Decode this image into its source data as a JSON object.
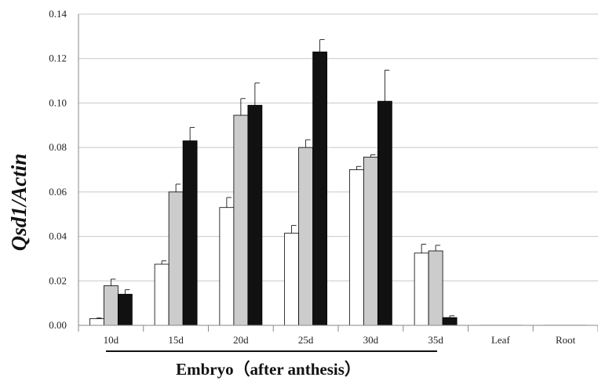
{
  "chart_data": {
    "type": "bar",
    "ylabel": "Qsd1/Actin",
    "xlabel": "Embryo（after anthesis）",
    "categories": [
      "10d",
      "15d",
      "20d",
      "25d",
      "30d",
      "35d",
      "Leaf",
      "Root"
    ],
    "ylim": [
      0,
      0.14
    ],
    "yticks": [
      "0.00",
      "0.02",
      "0.04",
      "0.06",
      "0.08",
      "0.10",
      "0.12",
      "0.14"
    ],
    "grid": true,
    "series": [
      {
        "color": "#ffffff",
        "values": [
          0.003,
          0.0275,
          0.053,
          0.0415,
          0.07,
          0.0325,
          0.0,
          0.0
        ],
        "errors": [
          0.0003,
          0.0015,
          0.0045,
          0.0035,
          0.0015,
          0.004,
          0.0,
          0.0
        ]
      },
      {
        "color": "#cccccc",
        "values": [
          0.0178,
          0.06,
          0.0945,
          0.08,
          0.0757,
          0.0335,
          0.0,
          0.0
        ],
        "errors": [
          0.003,
          0.0035,
          0.0075,
          0.0035,
          0.001,
          0.0025,
          0.0,
          0.0
        ]
      },
      {
        "color": "#111111",
        "values": [
          0.014,
          0.083,
          0.099,
          0.123,
          0.1008,
          0.0035,
          0.0,
          0.0
        ],
        "errors": [
          0.002,
          0.006,
          0.01,
          0.0055,
          0.014,
          0.0008,
          0.0,
          0.0
        ]
      }
    ]
  }
}
